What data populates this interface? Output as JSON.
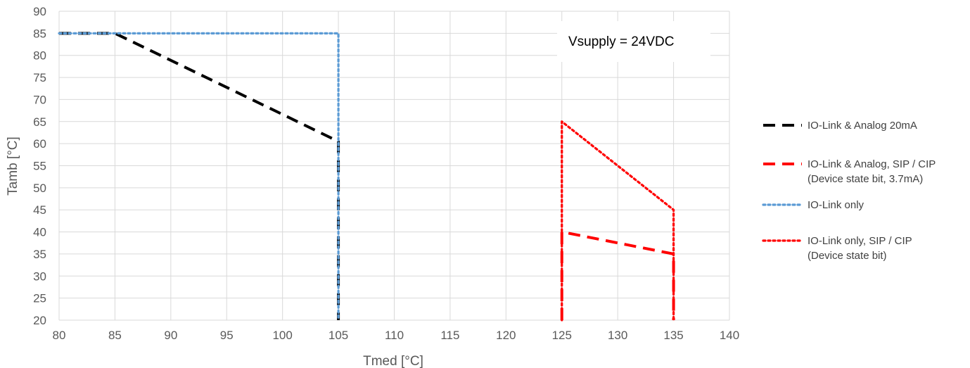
{
  "chart_data": {
    "type": "line",
    "xlabel": "Tmed [°C]",
    "ylabel": "Tamb [°C]",
    "xlim": [
      80,
      140
    ],
    "ylim": [
      20,
      90
    ],
    "xticks": [
      80,
      85,
      90,
      95,
      100,
      105,
      110,
      115,
      120,
      125,
      130,
      135,
      140
    ],
    "yticks": [
      20,
      25,
      30,
      35,
      40,
      45,
      50,
      55,
      60,
      65,
      70,
      75,
      80,
      85,
      90
    ],
    "grid": true,
    "legend_position": "right",
    "annotation": "Vsupply = 24VDC",
    "series": [
      {
        "name": "IO-Link & Analog 20mA",
        "color": "#000000",
        "style": "dashed",
        "points": [
          [
            80,
            85
          ],
          [
            85,
            85
          ],
          [
            105,
            60.5
          ],
          [
            105,
            20
          ]
        ]
      },
      {
        "name": "IO-Link & Analog,  SIP / CIP",
        "name_line2": "(Device state bit, 3.7mA)",
        "color": "#ff0000",
        "style": "dashed",
        "points": [
          [
            125,
            20
          ],
          [
            125,
            40
          ],
          [
            135,
            35
          ],
          [
            135,
            20
          ]
        ]
      },
      {
        "name": "IO-Link only",
        "color": "#5b9bd5",
        "style": "dotted",
        "points": [
          [
            80,
            85
          ],
          [
            105,
            85
          ],
          [
            105,
            20
          ]
        ]
      },
      {
        "name": "IO-Link only, SIP / CIP",
        "name_line2": "(Device state bit)",
        "color": "#ff0000",
        "style": "dotted",
        "points": [
          [
            125,
            20
          ],
          [
            125,
            65
          ],
          [
            135,
            45
          ],
          [
            135,
            20
          ]
        ]
      }
    ]
  }
}
